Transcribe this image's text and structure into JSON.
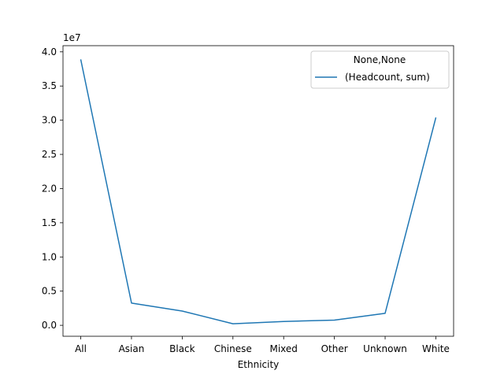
{
  "chart_data": {
    "type": "line",
    "title": "",
    "xlabel": "Ethnicity",
    "ylabel": "",
    "y_offset_label": "1e7",
    "y_multiplier": 10000000,
    "categories": [
      "All",
      "Asian",
      "Black",
      "Chinese",
      "Mixed",
      "Other",
      "Unknown",
      "White"
    ],
    "series": [
      {
        "name": "(Headcount, sum)",
        "color": "#1f77b4",
        "values": [
          38900000,
          3250000,
          2080000,
          230000,
          570000,
          760000,
          1750000,
          30400000
        ]
      }
    ],
    "ylim": [
      -1600000,
      40900000
    ],
    "yticks": [
      0,
      5000000,
      10000000,
      15000000,
      20000000,
      25000000,
      30000000,
      35000000,
      40000000
    ],
    "ytick_labels": [
      "0.0",
      "0.5",
      "1.0",
      "1.5",
      "2.0",
      "2.5",
      "3.0",
      "3.5",
      "4.0"
    ],
    "grid": false,
    "legend": {
      "title": "None,None",
      "placement": "top-right"
    }
  }
}
